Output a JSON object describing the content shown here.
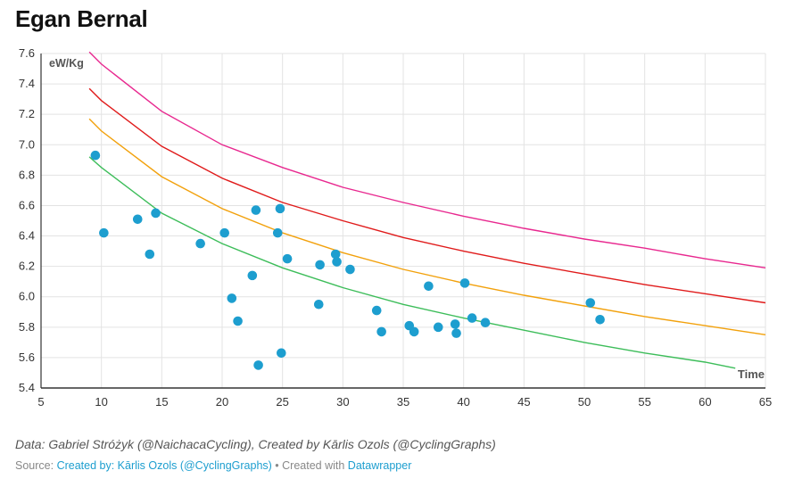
{
  "title": "Egan Bernal",
  "notes": "Data: Gabriel Stróżyk (@NaichacaCycling), Created by Kārlis Ozols (@CyclingGraphs)",
  "footer": {
    "source_label": "Source:",
    "source_link": "Created by: Kārlis Ozols (@CyclingGraphs)",
    "separator": " • Created with ",
    "tool_link": "Datawrapper"
  },
  "chart_data": {
    "type": "scatter",
    "xlabel": "Time",
    "ylabel": "eW/Kg",
    "xlim": [
      5,
      65
    ],
    "ylim": [
      5.4,
      7.6
    ],
    "xticks": [
      5,
      10,
      15,
      20,
      25,
      30,
      35,
      40,
      45,
      50,
      55,
      60,
      65
    ],
    "yticks": [
      5.4,
      5.6,
      5.8,
      6.0,
      6.2,
      6.4,
      6.6,
      6.8,
      7.0,
      7.2,
      7.4,
      7.6
    ],
    "grid": true,
    "point_color": "#1d9ecf",
    "points": [
      {
        "x": 9.5,
        "y": 6.93
      },
      {
        "x": 10.2,
        "y": 6.42
      },
      {
        "x": 13.0,
        "y": 6.51
      },
      {
        "x": 14.0,
        "y": 6.28
      },
      {
        "x": 14.5,
        "y": 6.55
      },
      {
        "x": 18.2,
        "y": 6.35
      },
      {
        "x": 20.2,
        "y": 6.42
      },
      {
        "x": 20.8,
        "y": 5.99
      },
      {
        "x": 21.3,
        "y": 5.84
      },
      {
        "x": 22.5,
        "y": 6.14
      },
      {
        "x": 22.8,
        "y": 6.57
      },
      {
        "x": 23.0,
        "y": 5.55
      },
      {
        "x": 24.6,
        "y": 6.42
      },
      {
        "x": 24.8,
        "y": 6.58
      },
      {
        "x": 24.9,
        "y": 5.63
      },
      {
        "x": 25.4,
        "y": 6.25
      },
      {
        "x": 28.0,
        "y": 5.95
      },
      {
        "x": 28.1,
        "y": 6.21
      },
      {
        "x": 29.4,
        "y": 6.28
      },
      {
        "x": 29.5,
        "y": 6.23
      },
      {
        "x": 30.6,
        "y": 6.18
      },
      {
        "x": 32.8,
        "y": 5.91
      },
      {
        "x": 33.2,
        "y": 5.77
      },
      {
        "x": 35.5,
        "y": 5.81
      },
      {
        "x": 35.9,
        "y": 5.77
      },
      {
        "x": 37.1,
        "y": 6.07
      },
      {
        "x": 37.9,
        "y": 5.8
      },
      {
        "x": 39.3,
        "y": 5.82
      },
      {
        "x": 39.4,
        "y": 5.76
      },
      {
        "x": 40.1,
        "y": 6.09
      },
      {
        "x": 40.7,
        "y": 5.86
      },
      {
        "x": 41.8,
        "y": 5.83
      },
      {
        "x": 50.5,
        "y": 5.96
      },
      {
        "x": 51.3,
        "y": 5.85
      }
    ],
    "series": [
      {
        "name": "pink",
        "color": "#e8288f",
        "x_range": [
          9,
          65
        ],
        "x": [
          9,
          10,
          15,
          20,
          25,
          30,
          35,
          40,
          45,
          50,
          55,
          60,
          65
        ],
        "y": [
          7.61,
          7.53,
          7.22,
          7.0,
          6.85,
          6.72,
          6.62,
          6.53,
          6.45,
          6.38,
          6.32,
          6.25,
          6.19
        ]
      },
      {
        "name": "red",
        "color": "#e01b1b",
        "x_range": [
          9,
          65
        ],
        "x": [
          9,
          10,
          15,
          20,
          25,
          30,
          35,
          40,
          45,
          50,
          55,
          60,
          65
        ],
        "y": [
          7.37,
          7.29,
          6.99,
          6.78,
          6.62,
          6.5,
          6.39,
          6.3,
          6.22,
          6.15,
          6.08,
          6.02,
          5.96
        ]
      },
      {
        "name": "orange",
        "color": "#f2a10c",
        "x_range": [
          9,
          65
        ],
        "x": [
          9,
          10,
          15,
          20,
          25,
          30,
          35,
          40,
          45,
          50,
          55,
          60,
          65
        ],
        "y": [
          7.17,
          7.09,
          6.79,
          6.58,
          6.42,
          6.29,
          6.18,
          6.09,
          6.01,
          5.94,
          5.87,
          5.81,
          5.75
        ]
      },
      {
        "name": "green",
        "color": "#3dbd5a",
        "x_range": [
          9,
          62.5
        ],
        "x": [
          9,
          10,
          15,
          20,
          25,
          30,
          35,
          40,
          45,
          50,
          55,
          60,
          62.5
        ],
        "y": [
          6.92,
          6.85,
          6.55,
          6.35,
          6.19,
          6.06,
          5.95,
          5.86,
          5.78,
          5.7,
          5.63,
          5.57,
          5.53
        ]
      }
    ]
  }
}
